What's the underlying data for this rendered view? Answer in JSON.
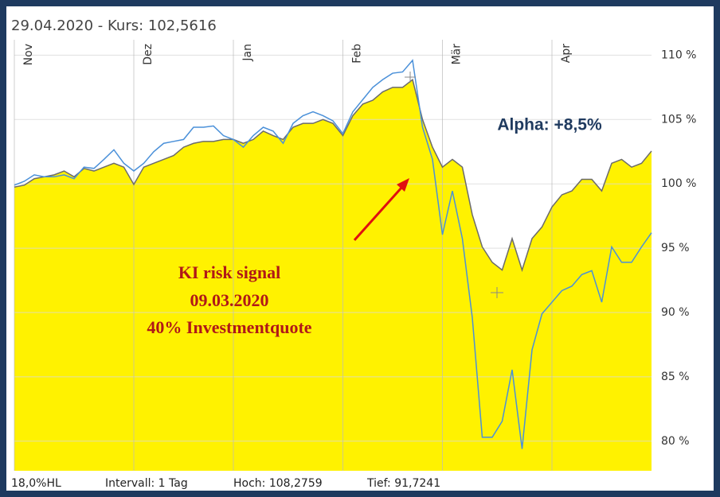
{
  "chart_data": {
    "type": "line",
    "title": "29.04.2020  - Kurs: 102,5616",
    "categories": [
      "Nov",
      null,
      null,
      null,
      null,
      null,
      null,
      null,
      null,
      null,
      null,
      null,
      "Dez",
      null,
      null,
      null,
      null,
      null,
      null,
      null,
      null,
      null,
      "Jan",
      null,
      null,
      null,
      null,
      null,
      null,
      null,
      null,
      null,
      null,
      "Feb",
      null,
      null,
      null,
      null,
      null,
      null,
      null,
      null,
      null,
      "Mär",
      null,
      null,
      null,
      null,
      null,
      null,
      null,
      null,
      null,
      null,
      "Apr",
      null,
      null,
      null,
      null,
      null,
      null,
      null,
      null,
      null,
      null
    ],
    "series": [
      {
        "color": "#6b6b6b",
        "fill": "#fff200",
        "values": [
          99.75,
          99.9,
          100.4,
          100.55,
          100.7,
          101.0,
          100.55,
          101.2,
          101.0,
          101.3,
          101.6,
          101.3,
          99.95,
          101.3,
          101.6,
          101.9,
          102.2,
          102.85,
          103.15,
          103.3,
          103.3,
          103.45,
          103.45,
          103.15,
          103.45,
          104.1,
          103.75,
          103.45,
          104.4,
          104.7,
          104.7,
          105.0,
          104.7,
          103.75,
          105.3,
          106.2,
          106.5,
          107.15,
          107.5,
          107.5,
          108.1,
          105.0,
          102.85,
          101.3,
          101.9,
          101.3,
          97.6,
          95.1,
          93.9,
          93.3,
          95.75,
          93.3,
          95.75,
          96.65,
          98.2,
          99.15,
          99.45,
          100.35,
          100.35,
          99.45,
          101.6,
          101.9,
          101.3,
          101.6,
          102.55
        ]
      },
      {
        "color": "#4a90d9",
        "values": [
          99.9,
          100.2,
          100.7,
          100.55,
          100.55,
          100.7,
          100.4,
          101.3,
          101.2,
          101.9,
          102.65,
          101.6,
          101.0,
          101.6,
          102.5,
          103.15,
          103.3,
          103.45,
          104.4,
          104.4,
          104.5,
          103.75,
          103.45,
          102.85,
          103.75,
          104.4,
          104.1,
          103.15,
          104.7,
          105.3,
          105.6,
          105.3,
          104.9,
          103.9,
          105.6,
          106.55,
          107.5,
          108.1,
          108.6,
          108.7,
          109.6,
          104.4,
          101.9,
          96.05,
          99.45,
          95.75,
          89.6,
          80.3,
          80.3,
          81.55,
          85.55,
          79.4,
          87.1,
          89.9,
          90.8,
          91.7,
          92.05,
          92.95,
          93.25,
          90.8,
          95.1,
          93.9,
          93.9,
          95.1,
          96.2
        ]
      }
    ],
    "ylim": [
      77.7,
      111.2
    ],
    "yticks": [
      {
        "value": 80,
        "label": "80 %"
      },
      {
        "value": 85,
        "label": "85 %"
      },
      {
        "value": 90,
        "label": "90 %"
      },
      {
        "value": 95,
        "label": "95 %"
      },
      {
        "value": 100,
        "label": "100 %"
      },
      {
        "value": 105,
        "label": "105 %"
      },
      {
        "value": 110,
        "label": "110 %"
      }
    ],
    "grid": true,
    "annotations": {
      "alpha": "Alpha: +8,5%",
      "signal": [
        "KI risk signal",
        "09.03.2020",
        "40% Investmentquote"
      ]
    },
    "footer": [
      "18,0%HL",
      "Intervall: 1 Tag",
      "Hoch: 108,2759",
      "Tief: 91,7241"
    ]
  }
}
